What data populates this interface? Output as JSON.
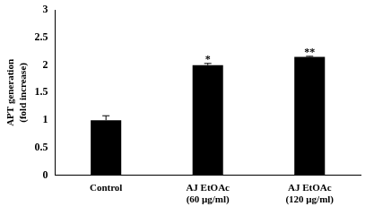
{
  "chart_data": {
    "type": "bar",
    "y_label": [
      "APT generation",
      "(fold increase)"
    ],
    "categories": [
      "Control",
      [
        "AJ EtOAc",
        "(60 μg/ml)"
      ],
      [
        "AJ EtOAc",
        "(120 μg/ml)"
      ]
    ],
    "values": [
      1.0,
      2.0,
      2.15
    ],
    "error": [
      0.08,
      0.03,
      0.01
    ],
    "significance": [
      null,
      "*",
      "**"
    ],
    "color": "#000000",
    "ylim": [
      0,
      3
    ],
    "yticks": [
      0,
      0.5,
      1,
      1.5,
      2,
      2.5,
      3
    ],
    "grid": false
  }
}
